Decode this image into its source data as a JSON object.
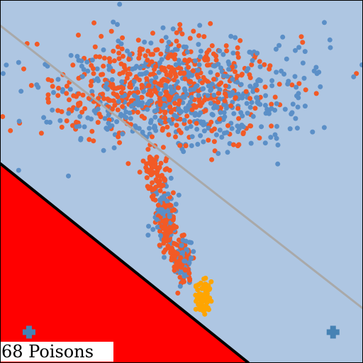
{
  "caption": "68 Poisons",
  "chart_data": {
    "type": "scatter",
    "title": "",
    "xlabel": "",
    "ylabel": "",
    "xlim": [
      -1,
      1
    ],
    "ylim": [
      -1,
      1
    ],
    "grid": false,
    "legend": "none",
    "background_color": "#aec6e2",
    "region": {
      "color": "#ff0000",
      "boundary_color": "#000000",
      "polygon": [
        [
          -1,
          0.1
        ],
        [
          -1,
          -1
        ],
        [
          0.37,
          -1
        ]
      ]
    },
    "reference_line": {
      "color": "#a9a9a9",
      "points": [
        [
          -1,
          0.86
        ],
        [
          1,
          -0.7
        ]
      ]
    },
    "series": [
      {
        "color": "#f25a26",
        "marker": "circle",
        "clusters": [
          {
            "cx": -0.08,
            "cy": 0.52,
            "sx": 0.32,
            "sy": 0.14,
            "n": 520,
            "seed": 11
          },
          {
            "cx": -0.15,
            "cy": 0.02,
            "sx": 0.03,
            "sy": 0.08,
            "n": 70,
            "seed": 12
          },
          {
            "cx": -0.08,
            "cy": -0.25,
            "sx": 0.025,
            "sy": 0.07,
            "n": 110,
            "seed": 13
          },
          {
            "cx": 0.0,
            "cy": -0.42,
            "sx": 0.025,
            "sy": 0.06,
            "n": 120,
            "seed": 14
          }
        ]
      },
      {
        "color": "#5b8fc7",
        "marker": "circle",
        "clusters": [
          {
            "cx": 0.02,
            "cy": 0.48,
            "sx": 0.36,
            "sy": 0.16,
            "n": 520,
            "seed": 21
          },
          {
            "cx": -0.1,
            "cy": -0.18,
            "sx": 0.03,
            "sy": 0.08,
            "n": 80,
            "seed": 22
          },
          {
            "cx": 0.02,
            "cy": -0.45,
            "sx": 0.025,
            "sy": 0.05,
            "n": 60,
            "seed": 23
          }
        ]
      },
      {
        "color": "#ffa500",
        "marker": "circle",
        "clusters": [
          {
            "cx": 0.12,
            "cy": -0.64,
            "sx": 0.025,
            "sy": 0.05,
            "n": 68,
            "seed": 31
          }
        ]
      }
    ],
    "markers": [
      {
        "x": -0.84,
        "y": -0.83,
        "color": "#4682b4",
        "marker": "plus"
      },
      {
        "x": 0.835,
        "y": -0.83,
        "color": "#4682b4",
        "marker": "plus"
      }
    ]
  }
}
